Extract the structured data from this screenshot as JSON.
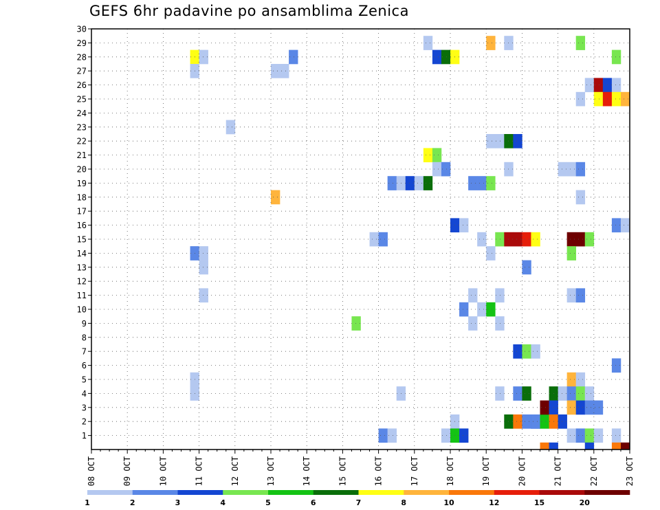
{
  "chart_data": {
    "type": "heatmap",
    "title": "GEFS 6hr padavine po ansamblima Zenica",
    "x_tick_labels": [
      "08 OCT",
      "09 OCT",
      "10 OCT",
      "11 OCT",
      "12 OCT",
      "13 OCT",
      "14 OCT",
      "15 OCT",
      "16 OCT",
      "17 OCT",
      "18 OCT",
      "19 OCT",
      "20 OCT",
      "21 OCT",
      "22 OCT",
      "23 OCT"
    ],
    "y_tick_labels": [
      "1",
      "2",
      "3",
      "4",
      "5",
      "6",
      "7",
      "8",
      "9",
      "10",
      "11",
      "12",
      "13",
      "14",
      "15",
      "16",
      "17",
      "18",
      "19",
      "20",
      "21",
      "22",
      "23",
      "24",
      "25",
      "26",
      "27",
      "28",
      "29",
      "30"
    ],
    "time_steps_per_day": 4,
    "xlim_steps": [
      0,
      60
    ],
    "ylim": [
      0,
      30
    ],
    "grid": true,
    "legend": {
      "placement": "bottom",
      "labels": [
        "1",
        "2",
        "3",
        "4",
        "5",
        "6",
        "7",
        "8",
        "10",
        "12",
        "15",
        "20"
      ],
      "colors": [
        "#b4c8f0",
        "#5a87e6",
        "#1446d2",
        "#78e650",
        "#14c314",
        "#0a6e0a",
        "#ffff14",
        "#ffb43c",
        "#fa780a",
        "#e61e0a",
        "#aa0a0a",
        "#6e0000"
      ]
    },
    "cells": [
      {
        "s": 11,
        "m": 28,
        "c": 7
      },
      {
        "s": 11,
        "m": 27,
        "c": 1
      },
      {
        "s": 12,
        "m": 28,
        "c": 1
      },
      {
        "s": 11,
        "m": 14,
        "c": 2
      },
      {
        "s": 12,
        "m": 14,
        "c": 1
      },
      {
        "s": 12,
        "m": 13,
        "c": 1
      },
      {
        "s": 12,
        "m": 11,
        "c": 1
      },
      {
        "s": 11,
        "m": 5,
        "c": 1
      },
      {
        "s": 11,
        "m": 4,
        "c": 1
      },
      {
        "s": 15,
        "m": 23,
        "c": 1
      },
      {
        "s": 20,
        "m": 27,
        "c": 1
      },
      {
        "s": 21,
        "m": 27,
        "c": 1
      },
      {
        "s": 22,
        "m": 28,
        "c": 2
      },
      {
        "s": 20,
        "m": 18,
        "c": 8
      },
      {
        "s": 29,
        "m": 9,
        "c": 4
      },
      {
        "s": 31,
        "m": 15,
        "c": 1
      },
      {
        "s": 32,
        "m": 15,
        "c": 2
      },
      {
        "s": 32,
        "m": 1,
        "c": 2
      },
      {
        "s": 33,
        "m": 1,
        "c": 1
      },
      {
        "s": 33,
        "m": 19,
        "c": 2
      },
      {
        "s": 34,
        "m": 19,
        "c": 1
      },
      {
        "s": 35,
        "m": 19,
        "c": 3
      },
      {
        "s": 36,
        "m": 19,
        "c": 1
      },
      {
        "s": 37,
        "m": 19,
        "c": 6
      },
      {
        "s": 34,
        "m": 4,
        "c": 1
      },
      {
        "s": 37,
        "m": 29,
        "c": 1
      },
      {
        "s": 37,
        "m": 21,
        "c": 7
      },
      {
        "s": 38,
        "m": 21,
        "c": 4
      },
      {
        "s": 38,
        "m": 20,
        "c": 1
      },
      {
        "s": 39,
        "m": 20,
        "c": 2
      },
      {
        "s": 38,
        "m": 28,
        "c": 3
      },
      {
        "s": 39,
        "m": 28,
        "c": 6
      },
      {
        "s": 40,
        "m": 28,
        "c": 7
      },
      {
        "s": 39,
        "m": 1,
        "c": 1
      },
      {
        "s": 40,
        "m": 2,
        "c": 1
      },
      {
        "s": 40,
        "m": 1,
        "c": 5
      },
      {
        "s": 41,
        "m": 1,
        "c": 3
      },
      {
        "s": 40,
        "m": 16,
        "c": 3
      },
      {
        "s": 41,
        "m": 16,
        "c": 1
      },
      {
        "s": 41,
        "m": 10,
        "c": 2
      },
      {
        "s": 42,
        "m": 11,
        "c": 1
      },
      {
        "s": 42,
        "m": 9,
        "c": 1
      },
      {
        "s": 42,
        "m": 19,
        "c": 2
      },
      {
        "s": 43,
        "m": 19,
        "c": 2
      },
      {
        "s": 43,
        "m": 10,
        "c": 1
      },
      {
        "s": 43,
        "m": 15,
        "c": 1
      },
      {
        "s": 44,
        "m": 29,
        "c": 8
      },
      {
        "s": 44,
        "m": 22,
        "c": 1
      },
      {
        "s": 44,
        "m": 19,
        "c": 4
      },
      {
        "s": 44,
        "m": 14,
        "c": 1
      },
      {
        "s": 44,
        "m": 10,
        "c": 5
      },
      {
        "s": 45,
        "m": 22,
        "c": 1
      },
      {
        "s": 45,
        "m": 15,
        "c": 4
      },
      {
        "s": 45,
        "m": 11,
        "c": 1
      },
      {
        "s": 45,
        "m": 9,
        "c": 1
      },
      {
        "s": 45,
        "m": 4,
        "c": 1
      },
      {
        "s": 46,
        "m": 22,
        "c": 6
      },
      {
        "s": 46,
        "m": 15,
        "c": 11
      },
      {
        "s": 46,
        "m": 2,
        "c": 6
      },
      {
        "s": 46,
        "m": 20,
        "c": 1
      },
      {
        "s": 46,
        "m": 29,
        "c": 1
      },
      {
        "s": 47,
        "m": 22,
        "c": 3
      },
      {
        "s": 47,
        "m": 15,
        "c": 11
      },
      {
        "s": 47,
        "m": 7,
        "c": 3
      },
      {
        "s": 47,
        "m": 4,
        "c": 2
      },
      {
        "s": 47,
        "m": 2,
        "c": 9
      },
      {
        "s": 48,
        "m": 15,
        "c": 10
      },
      {
        "s": 48,
        "m": 7,
        "c": 4
      },
      {
        "s": 48,
        "m": 4,
        "c": 6
      },
      {
        "s": 48,
        "m": 2,
        "c": 2
      },
      {
        "s": 48,
        "m": 13,
        "c": 2
      },
      {
        "s": 49,
        "m": 15,
        "c": 7
      },
      {
        "s": 49,
        "m": 7,
        "c": 1
      },
      {
        "s": 49,
        "m": 2,
        "c": 3
      },
      {
        "s": 49,
        "m": 2,
        "c": 2
      },
      {
        "s": 50,
        "m": 2,
        "c": 5
      },
      {
        "s": 50,
        "m": 3,
        "c": 12
      },
      {
        "s": 51,
        "m": 4,
        "c": 6
      },
      {
        "s": 51,
        "m": 3,
        "c": 3
      },
      {
        "s": 51,
        "m": 2,
        "c": 9
      },
      {
        "s": 52,
        "m": 4,
        "c": 1
      },
      {
        "s": 52,
        "m": 2,
        "c": 3
      },
      {
        "s": 52,
        "m": 20,
        "c": 1
      },
      {
        "s": 53,
        "m": 20,
        "c": 1
      },
      {
        "s": 53,
        "m": 15,
        "c": 12
      },
      {
        "s": 53,
        "m": 14,
        "c": 4
      },
      {
        "s": 53,
        "m": 5,
        "c": 8
      },
      {
        "s": 53,
        "m": 4,
        "c": 2
      },
      {
        "s": 53,
        "m": 3,
        "c": 8
      },
      {
        "s": 53,
        "m": 1,
        "c": 1
      },
      {
        "s": 53,
        "m": 11,
        "c": 1
      },
      {
        "s": 54,
        "m": 29,
        "c": 4
      },
      {
        "s": 54,
        "m": 25,
        "c": 1
      },
      {
        "s": 54,
        "m": 20,
        "c": 2
      },
      {
        "s": 54,
        "m": 18,
        "c": 1
      },
      {
        "s": 54,
        "m": 15,
        "c": 12
      },
      {
        "s": 54,
        "m": 11,
        "c": 2
      },
      {
        "s": 54,
        "m": 5,
        "c": 1
      },
      {
        "s": 54,
        "m": 4,
        "c": 4
      },
      {
        "s": 54,
        "m": 3,
        "c": 3
      },
      {
        "s": 54,
        "m": 1,
        "c": 2
      },
      {
        "s": 55,
        "m": 26,
        "c": 1
      },
      {
        "s": 55,
        "m": 15,
        "c": 4
      },
      {
        "s": 55,
        "m": 4,
        "c": 1
      },
      {
        "s": 55,
        "m": 3,
        "c": 2
      },
      {
        "s": 55,
        "m": 1,
        "c": 4
      },
      {
        "s": 56,
        "m": 26,
        "c": 11
      },
      {
        "s": 56,
        "m": 25,
        "c": 7
      },
      {
        "s": 56,
        "m": 3,
        "c": 2
      },
      {
        "s": 56,
        "m": 1,
        "c": 1
      },
      {
        "s": 57,
        "m": 26,
        "c": 3
      },
      {
        "s": 57,
        "m": 25,
        "c": 10
      },
      {
        "s": 58,
        "m": 26,
        "c": 1
      },
      {
        "s": 58,
        "m": 25,
        "c": 7
      },
      {
        "s": 58,
        "m": 28,
        "c": 4
      },
      {
        "s": 58,
        "m": 16,
        "c": 2
      },
      {
        "s": 58,
        "m": 6,
        "c": 2
      },
      {
        "s": 58,
        "m": 1,
        "c": 1
      },
      {
        "s": 59,
        "m": 25,
        "c": 8
      },
      {
        "s": 59,
        "m": 16,
        "c": 1
      }
    ],
    "bottom_row_cells": [
      {
        "s": 50,
        "c": 9
      },
      {
        "s": 51,
        "c": 3
      },
      {
        "s": 55,
        "c": 3
      },
      {
        "s": 58,
        "c": 9
      },
      {
        "s": 59,
        "c": 12
      }
    ]
  }
}
